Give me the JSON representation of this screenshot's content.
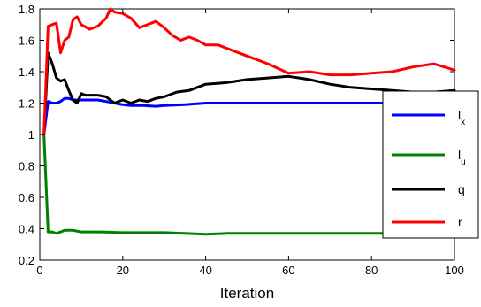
{
  "chart_data": {
    "type": "line",
    "title": "",
    "xlabel": "Iteration",
    "ylabel": "",
    "xlim": [
      0,
      100
    ],
    "ylim": [
      0.2,
      1.8
    ],
    "xticks": [
      0,
      20,
      40,
      60,
      80,
      100
    ],
    "xtick_labels": [
      "0",
      "20",
      "40",
      "60",
      "80",
      "100"
    ],
    "yticks": [
      0.2,
      0.4,
      0.6,
      0.8,
      1.0,
      1.2,
      1.4,
      1.6,
      1.8
    ],
    "ytick_labels": [
      "0.2",
      "0.4",
      "0.6",
      "0.8",
      "1",
      "1.2",
      "1.4",
      "1.6",
      "1.8"
    ],
    "grid": false,
    "legend_position": "right",
    "series": [
      {
        "name": "l",
        "subscript": "x",
        "color": "#0000ff",
        "x": [
          1,
          2,
          3,
          4,
          5,
          6,
          7,
          8,
          9,
          10,
          12,
          14,
          16,
          18,
          20,
          22,
          25,
          28,
          30,
          35,
          40,
          45,
          50,
          55,
          60,
          65,
          70,
          75,
          80,
          85,
          90,
          95,
          100
        ],
        "y": [
          1.0,
          1.21,
          1.2,
          1.2,
          1.21,
          1.23,
          1.23,
          1.22,
          1.22,
          1.22,
          1.22,
          1.22,
          1.21,
          1.2,
          1.19,
          1.185,
          1.185,
          1.18,
          1.185,
          1.19,
          1.2,
          1.2,
          1.2,
          1.2,
          1.2,
          1.2,
          1.2,
          1.2,
          1.2,
          1.2,
          1.2,
          1.2,
          1.2
        ]
      },
      {
        "name": "l",
        "subscript": "u",
        "color": "#008000",
        "x": [
          1,
          2,
          3,
          4,
          5,
          6,
          8,
          10,
          15,
          20,
          25,
          30,
          35,
          40,
          45,
          50,
          55,
          60,
          65,
          70,
          75,
          80,
          85,
          90,
          95,
          100
        ],
        "y": [
          1.0,
          0.38,
          0.38,
          0.37,
          0.38,
          0.39,
          0.39,
          0.38,
          0.38,
          0.375,
          0.375,
          0.375,
          0.37,
          0.365,
          0.37,
          0.37,
          0.37,
          0.37,
          0.37,
          0.37,
          0.37,
          0.37,
          0.37,
          0.37,
          0.37,
          0.37
        ]
      },
      {
        "name": "q",
        "subscript": "",
        "color": "#000000",
        "x": [
          1,
          2,
          3,
          4,
          5,
          6,
          7,
          8,
          9,
          10,
          11,
          12,
          14,
          16,
          18,
          20,
          22,
          24,
          26,
          28,
          30,
          33,
          36,
          40,
          45,
          50,
          55,
          60,
          65,
          70,
          75,
          80,
          85,
          90,
          95,
          100
        ],
        "y": [
          1.0,
          1.52,
          1.45,
          1.36,
          1.34,
          1.35,
          1.28,
          1.22,
          1.2,
          1.26,
          1.25,
          1.25,
          1.25,
          1.24,
          1.2,
          1.22,
          1.2,
          1.22,
          1.21,
          1.23,
          1.24,
          1.27,
          1.28,
          1.32,
          1.33,
          1.35,
          1.36,
          1.37,
          1.35,
          1.32,
          1.3,
          1.29,
          1.28,
          1.27,
          1.27,
          1.28
        ]
      },
      {
        "name": "r",
        "subscript": "",
        "color": "#ff0000",
        "x": [
          1,
          2,
          3,
          4,
          5,
          6,
          7,
          8,
          9,
          10,
          12,
          14,
          16,
          17,
          18,
          20,
          22,
          24,
          26,
          28,
          30,
          32,
          34,
          36,
          38,
          40,
          43,
          46,
          50,
          55,
          60,
          65,
          70,
          75,
          80,
          85,
          90,
          95,
          100
        ],
        "y": [
          1.0,
          1.69,
          1.7,
          1.71,
          1.52,
          1.6,
          1.62,
          1.73,
          1.75,
          1.7,
          1.67,
          1.69,
          1.74,
          1.8,
          1.78,
          1.77,
          1.74,
          1.68,
          1.7,
          1.72,
          1.68,
          1.63,
          1.6,
          1.62,
          1.6,
          1.57,
          1.57,
          1.54,
          1.5,
          1.45,
          1.39,
          1.4,
          1.38,
          1.38,
          1.39,
          1.4,
          1.43,
          1.45,
          1.41
        ]
      }
    ]
  }
}
